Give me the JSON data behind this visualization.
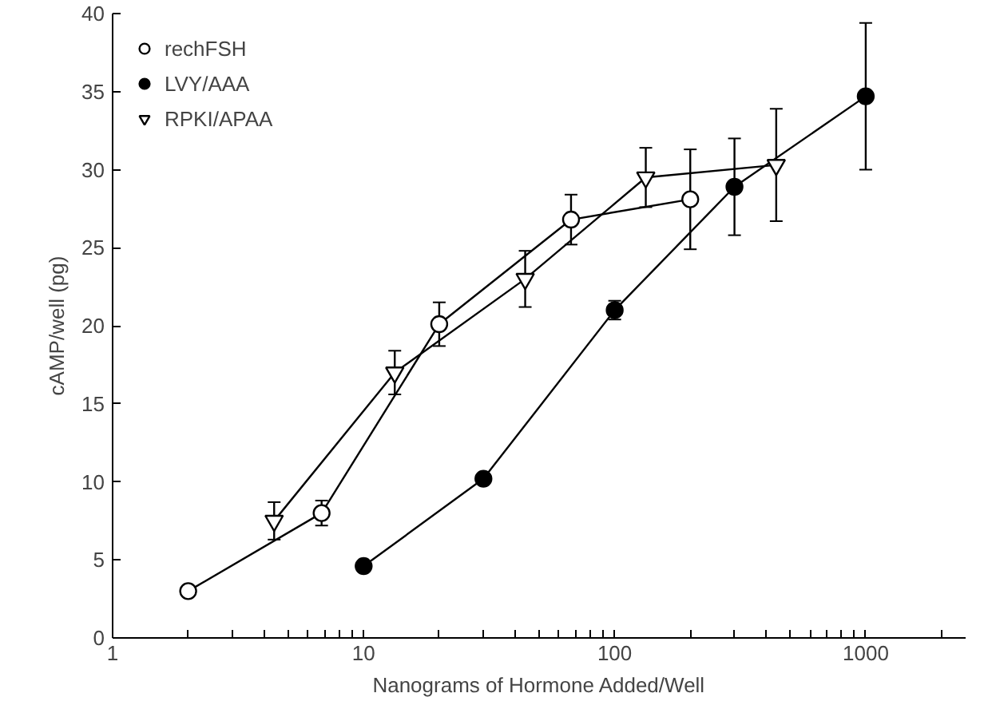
{
  "chart_data": {
    "type": "line",
    "xlabel": "Nanograms of Hormone Added/Well",
    "ylabel": "cAMP/well (pg)",
    "log": "x",
    "xlim": [
      1,
      2500
    ],
    "xticks": [
      1,
      {
        "value": 2,
        "label": null
      },
      {
        "value": 3,
        "label": null
      },
      {
        "value": 4,
        "label": null
      },
      {
        "value": 5,
        "label": null
      },
      {
        "value": 6,
        "label": null
      },
      {
        "value": 7,
        "label": null
      },
      {
        "value": 8,
        "label": null
      },
      {
        "value": 9,
        "label": null
      },
      10,
      {
        "value": 20,
        "label": null
      },
      {
        "value": 30,
        "label": null
      },
      {
        "value": 40,
        "label": null
      },
      {
        "value": 50,
        "label": null
      },
      {
        "value": 60,
        "label": null
      },
      {
        "value": 70,
        "label": null
      },
      {
        "value": 80,
        "label": null
      },
      {
        "value": 90,
        "label": null
      },
      100,
      {
        "value": 200,
        "label": null
      },
      {
        "value": 300,
        "label": null
      },
      {
        "value": 400,
        "label": null
      },
      {
        "value": 500,
        "label": null
      },
      {
        "value": 600,
        "label": null
      },
      {
        "value": 700,
        "label": null
      },
      {
        "value": 800,
        "label": null
      },
      {
        "value": 900,
        "label": null
      },
      1000,
      {
        "value": 2000,
        "label": null
      }
    ],
    "ylim": [
      0,
      40
    ],
    "yticks": [
      0,
      5,
      10,
      15,
      20,
      25,
      30,
      35,
      40
    ],
    "grid": false,
    "legend": "top left",
    "line_style": "solid",
    "series": [
      {
        "name": "rechFSH",
        "color": "#000000",
        "marker": "circle",
        "x": [
          2,
          6.8,
          20,
          67,
          200
        ],
        "values": [
          3,
          8,
          20.1,
          26.8,
          28.1
        ],
        "errors": [
          null,
          0.8,
          1.4,
          1.6,
          3.2
        ]
      },
      {
        "name": "LVY/AAA",
        "color": "#000000",
        "marker": "circle",
        "x": [
          10,
          30,
          100,
          300,
          1000
        ],
        "values": [
          4.6,
          10.2,
          21,
          28.9,
          34.7
        ],
        "errors": [
          null,
          null,
          0.6,
          3.1,
          4.7
        ]
      },
      {
        "name": "RPKI/APAA",
        "color": "#000000",
        "marker": "triangle",
        "x": [
          4.4,
          13.3,
          44,
          133,
          440
        ],
        "values": [
          7.5,
          17,
          23,
          29.5,
          30.3
        ],
        "errors": [
          1.2,
          1.4,
          1.8,
          1.9,
          3.6
        ]
      }
    ]
  }
}
